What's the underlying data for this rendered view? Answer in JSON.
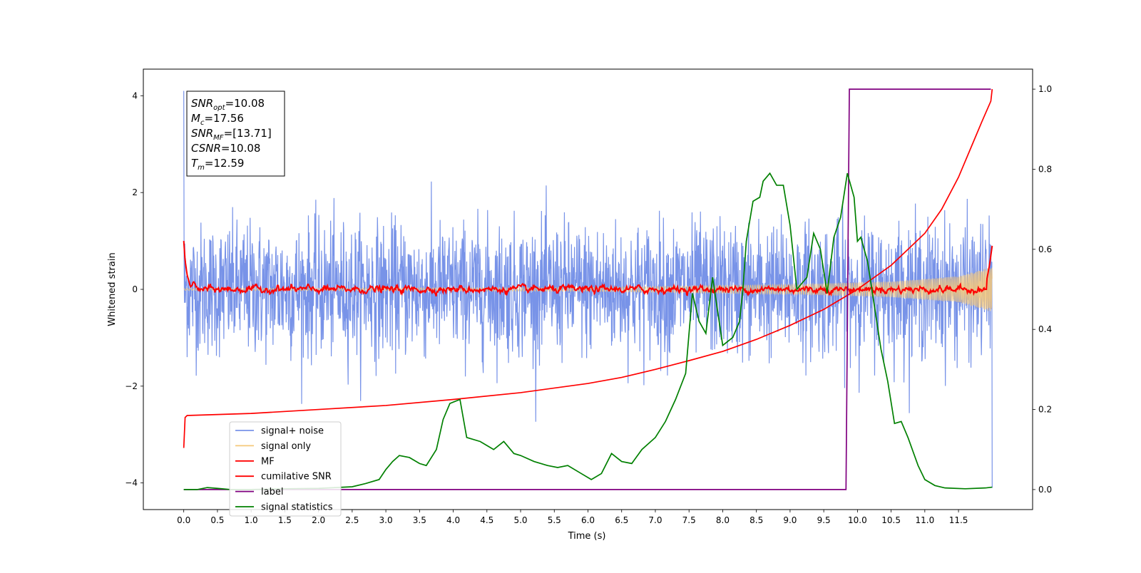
{
  "chart_data": {
    "type": "line",
    "title": "",
    "xlabel": "Time (s)",
    "ylabel_left": "Whitened strain",
    "ylabel_right": "",
    "xlim": [
      -0.6,
      12.6
    ],
    "ylim_left": [
      -4.55,
      4.55
    ],
    "ylim_right": [
      -0.05,
      1.05
    ],
    "x_ticks": [
      0.0,
      0.5,
      1.0,
      1.5,
      2.0,
      2.5,
      3.0,
      3.5,
      4.0,
      4.5,
      5.0,
      5.5,
      6.0,
      6.5,
      7.0,
      7.5,
      8.0,
      8.5,
      9.0,
      9.5,
      10.0,
      10.5,
      11.0,
      11.5
    ],
    "x_tick_labels": [
      "0.0",
      "0.5",
      "1.0",
      "1.5",
      "2.0",
      "2.5",
      "3.0",
      "3.5",
      "4.0",
      "4.5",
      "5.0",
      "5.5",
      "6.0",
      "6.5",
      "7.0",
      "7.5",
      "8.0",
      "8.5",
      "9.0",
      "9.5",
      "10.0",
      "10.5",
      "11.0",
      "11.5"
    ],
    "y_ticks_left": [
      -4,
      -2,
      0,
      2,
      4
    ],
    "y_tick_labels_left": [
      "−4",
      "−2",
      "0",
      "2",
      "4"
    ],
    "y_ticks_right": [
      0.0,
      0.2,
      0.4,
      0.6,
      0.8,
      1.0
    ],
    "y_tick_labels_right": [
      "0.0",
      "0.2",
      "0.4",
      "0.6",
      "0.8",
      "1.0"
    ],
    "grid": false,
    "legend_position": "lower-left",
    "annotation": {
      "lines": [
        {
          "sym": "SNR",
          "sub": "opt",
          "value": "=10.08"
        },
        {
          "sym": "M",
          "sub": "c",
          "value": "=17.56"
        },
        {
          "sym": "SNR",
          "sub": "MF",
          "value": "=[13.71]"
        },
        {
          "sym": "CSNR",
          "sub": "",
          "value": "=10.08"
        },
        {
          "sym": "T",
          "sub": "m",
          "value": "=12.59"
        }
      ]
    },
    "series": [
      {
        "name": "signal+ noise",
        "axis": "left",
        "color": "#7893e8",
        "kind": "noise",
        "x_range": [
          0.0,
          12.0
        ],
        "approx_std": 0.68,
        "approx_peak": 4.1
      },
      {
        "name": "signal only",
        "axis": "left",
        "color": "#f5c87a",
        "kind": "chirp",
        "x_range": [
          0.0,
          12.0
        ],
        "envelope": [
          [
            0.0,
            0.02
          ],
          [
            6.0,
            0.04
          ],
          [
            9.0,
            0.1
          ],
          [
            10.5,
            0.16
          ],
          [
            11.5,
            0.27
          ],
          [
            11.95,
            0.45
          ]
        ]
      },
      {
        "name": "MF",
        "axis": "left",
        "color": "#ff0000",
        "kind": "jitter",
        "x_range": [
          0.0,
          12.0
        ],
        "points": [
          [
            0.0,
            1.0
          ],
          [
            0.02,
            0.6
          ],
          [
            0.05,
            0.3
          ],
          [
            0.1,
            0.05
          ],
          [
            0.15,
            0.12
          ],
          [
            0.2,
            0.0
          ],
          [
            12.0,
            0.0
          ]
        ],
        "end_points": [
          [
            11.92,
            0.2
          ],
          [
            11.96,
            0.5
          ],
          [
            12.0,
            0.9
          ]
        ],
        "approx_std": 0.04
      },
      {
        "name": "cumilative SNR",
        "axis": "right",
        "color": "#ff0000",
        "kind": "line",
        "points": [
          [
            0.0,
            0.104
          ],
          [
            0.02,
            0.18
          ],
          [
            0.05,
            0.185
          ],
          [
            1.0,
            0.19
          ],
          [
            2.0,
            0.2
          ],
          [
            3.0,
            0.21
          ],
          [
            4.0,
            0.225
          ],
          [
            5.0,
            0.242
          ],
          [
            6.0,
            0.265
          ],
          [
            6.5,
            0.28
          ],
          [
            7.0,
            0.3
          ],
          [
            7.5,
            0.322
          ],
          [
            8.0,
            0.345
          ],
          [
            8.5,
            0.375
          ],
          [
            9.0,
            0.41
          ],
          [
            9.5,
            0.45
          ],
          [
            10.0,
            0.5
          ],
          [
            10.5,
            0.56
          ],
          [
            11.0,
            0.64
          ],
          [
            11.25,
            0.7
          ],
          [
            11.5,
            0.78
          ],
          [
            11.7,
            0.86
          ],
          [
            11.85,
            0.92
          ],
          [
            11.98,
            0.97
          ],
          [
            12.0,
            1.0
          ]
        ]
      },
      {
        "name": "label",
        "axis": "right",
        "color": "#800080",
        "kind": "line",
        "points": [
          [
            0.0,
            0.0
          ],
          [
            9.83,
            0.0
          ],
          [
            9.88,
            1.0
          ],
          [
            11.98,
            1.0
          ]
        ]
      },
      {
        "name": "signal statistics",
        "axis": "right",
        "color": "#008000",
        "kind": "line",
        "points": [
          [
            0.0,
            0.0
          ],
          [
            0.2,
            0.0
          ],
          [
            0.35,
            0.005
          ],
          [
            0.5,
            0.003
          ],
          [
            0.7,
            0.0
          ],
          [
            1.0,
            0.0
          ],
          [
            1.5,
            0.002
          ],
          [
            2.0,
            0.003
          ],
          [
            2.5,
            0.007
          ],
          [
            2.7,
            0.015
          ],
          [
            2.9,
            0.025
          ],
          [
            3.0,
            0.05
          ],
          [
            3.1,
            0.07
          ],
          [
            3.2,
            0.085
          ],
          [
            3.35,
            0.08
          ],
          [
            3.5,
            0.065
          ],
          [
            3.6,
            0.06
          ],
          [
            3.75,
            0.1
          ],
          [
            3.85,
            0.175
          ],
          [
            3.95,
            0.215
          ],
          [
            4.1,
            0.225
          ],
          [
            4.2,
            0.13
          ],
          [
            4.4,
            0.12
          ],
          [
            4.5,
            0.11
          ],
          [
            4.6,
            0.1
          ],
          [
            4.75,
            0.12
          ],
          [
            4.9,
            0.09
          ],
          [
            5.0,
            0.085
          ],
          [
            5.2,
            0.07
          ],
          [
            5.4,
            0.06
          ],
          [
            5.55,
            0.055
          ],
          [
            5.7,
            0.06
          ],
          [
            5.9,
            0.04
          ],
          [
            6.05,
            0.025
          ],
          [
            6.2,
            0.04
          ],
          [
            6.35,
            0.09
          ],
          [
            6.5,
            0.07
          ],
          [
            6.65,
            0.065
          ],
          [
            6.8,
            0.1
          ],
          [
            7.0,
            0.13
          ],
          [
            7.15,
            0.17
          ],
          [
            7.3,
            0.225
          ],
          [
            7.45,
            0.29
          ],
          [
            7.55,
            0.49
          ],
          [
            7.65,
            0.42
          ],
          [
            7.75,
            0.39
          ],
          [
            7.85,
            0.53
          ],
          [
            8.0,
            0.36
          ],
          [
            8.15,
            0.38
          ],
          [
            8.25,
            0.42
          ],
          [
            8.3,
            0.5
          ],
          [
            8.35,
            0.62
          ],
          [
            8.45,
            0.72
          ],
          [
            8.55,
            0.73
          ],
          [
            8.6,
            0.77
          ],
          [
            8.7,
            0.79
          ],
          [
            8.8,
            0.76
          ],
          [
            8.9,
            0.76
          ],
          [
            9.0,
            0.66
          ],
          [
            9.1,
            0.5
          ],
          [
            9.15,
            0.51
          ],
          [
            9.25,
            0.53
          ],
          [
            9.35,
            0.64
          ],
          [
            9.45,
            0.6
          ],
          [
            9.55,
            0.49
          ],
          [
            9.65,
            0.63
          ],
          [
            9.75,
            0.68
          ],
          [
            9.85,
            0.79
          ],
          [
            9.95,
            0.73
          ],
          [
            10.0,
            0.62
          ],
          [
            10.05,
            0.63
          ],
          [
            10.15,
            0.57
          ],
          [
            10.25,
            0.46
          ],
          [
            10.35,
            0.35
          ],
          [
            10.45,
            0.27
          ],
          [
            10.55,
            0.165
          ],
          [
            10.65,
            0.17
          ],
          [
            10.75,
            0.13
          ],
          [
            10.9,
            0.06
          ],
          [
            11.0,
            0.025
          ],
          [
            11.15,
            0.01
          ],
          [
            11.3,
            0.004
          ],
          [
            11.6,
            0.002
          ],
          [
            11.9,
            0.004
          ],
          [
            12.0,
            0.006
          ]
        ]
      }
    ]
  }
}
